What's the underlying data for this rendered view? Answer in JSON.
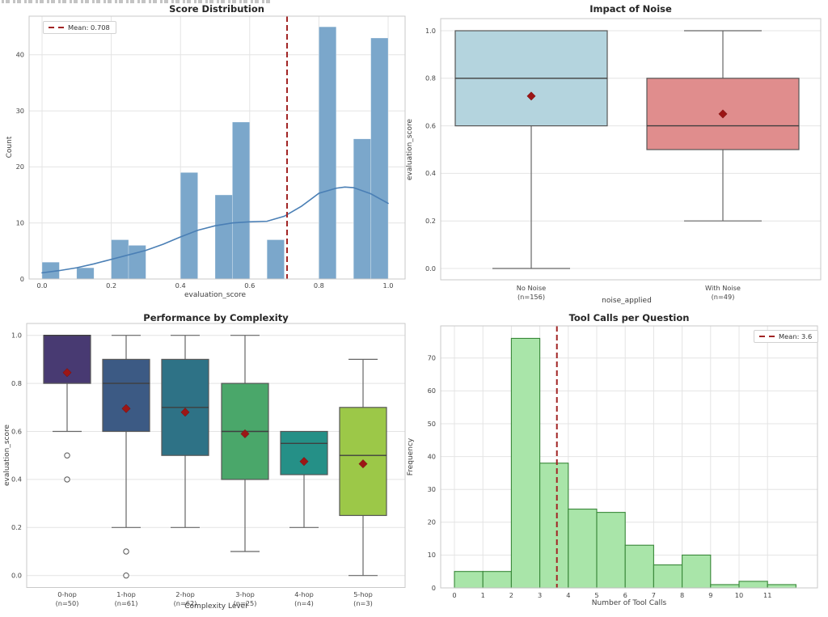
{
  "figure": {
    "background": "#ffffff"
  },
  "palette": {
    "mean_line": "#a12424",
    "mean_marker": "#9c1616",
    "grid": "#e4e4e4",
    "spine": "#c9c9c9",
    "box_edge": "#565656",
    "median_line": "#3f3f3f",
    "whisker": "#666666",
    "tick_text": "#444444",
    "title_text": "#262626"
  },
  "chart_data": [
    {
      "type": "bar",
      "subtype": "histogram-with-kde",
      "title": "Score Distribution",
      "xlabel": "evaluation_score",
      "ylabel": "Count",
      "legend": {
        "label": "Mean: 0.708",
        "position": "upper-left"
      },
      "mean": 0.708,
      "bar_color": "#7ba7cb",
      "kde_color": "#4a7fb5",
      "xticks": [
        "0.0",
        "0.2",
        "0.4",
        "0.6",
        "0.8",
        "1.0"
      ],
      "yticks": [
        "0",
        "10",
        "20",
        "30",
        "40"
      ],
      "xlim": [
        -0.04,
        1.05
      ],
      "ylim": [
        0,
        47
      ],
      "bin_width": 0.05,
      "bars": [
        {
          "x": 0.0,
          "count": 3
        },
        {
          "x": 0.1,
          "count": 2
        },
        {
          "x": 0.2,
          "count": 7
        },
        {
          "x": 0.25,
          "count": 6
        },
        {
          "x": 0.4,
          "count": 19
        },
        {
          "x": 0.5,
          "count": 15
        },
        {
          "x": 0.55,
          "count": 28
        },
        {
          "x": 0.65,
          "count": 7
        },
        {
          "x": 0.8,
          "count": 45
        },
        {
          "x": 0.9,
          "count": 25
        },
        {
          "x": 0.95,
          "count": 43
        }
      ],
      "kde_points": [
        [
          0.0,
          1.1
        ],
        [
          0.05,
          1.5
        ],
        [
          0.1,
          2.0
        ],
        [
          0.15,
          2.7
        ],
        [
          0.2,
          3.5
        ],
        [
          0.25,
          4.3
        ],
        [
          0.3,
          5.1
        ],
        [
          0.35,
          6.2
        ],
        [
          0.4,
          7.5
        ],
        [
          0.45,
          8.7
        ],
        [
          0.5,
          9.5
        ],
        [
          0.55,
          10.0
        ],
        [
          0.6,
          10.2
        ],
        [
          0.65,
          10.3
        ],
        [
          0.7,
          11.2
        ],
        [
          0.75,
          13.0
        ],
        [
          0.8,
          15.3
        ],
        [
          0.85,
          16.2
        ],
        [
          0.875,
          16.4
        ],
        [
          0.9,
          16.3
        ],
        [
          0.95,
          15.2
        ],
        [
          1.0,
          13.5
        ]
      ]
    },
    {
      "type": "boxplot",
      "title": "Impact of Noise",
      "xlabel": "noise_applied",
      "ylabel": "evaluation_score",
      "yticks": [
        "0.0",
        "0.2",
        "0.4",
        "0.6",
        "0.8",
        "1.0"
      ],
      "ylim": [
        -0.05,
        1.05
      ],
      "boxes": [
        {
          "label": "No Noise",
          "n_label": "(n=156)",
          "color": "#b4d4de",
          "q1": 0.6,
          "median": 0.8,
          "q3": 1.0,
          "whisker_low": 0.0,
          "whisker_high": 1.0,
          "mean": 0.725,
          "outliers": []
        },
        {
          "label": "With Noise",
          "n_label": "(n=49)",
          "color": "#e08d8d",
          "q1": 0.5,
          "median": 0.6,
          "q3": 0.8,
          "whisker_low": 0.2,
          "whisker_high": 1.0,
          "mean": 0.65,
          "outliers": []
        }
      ]
    },
    {
      "type": "boxplot",
      "title": "Performance by Complexity",
      "xlabel": "Complexity Level",
      "ylabel": "evaluation_score",
      "yticks": [
        "0.0",
        "0.2",
        "0.4",
        "0.6",
        "0.8",
        "1.0"
      ],
      "ylim": [
        -0.05,
        1.05
      ],
      "boxes": [
        {
          "label": "0-hop",
          "n_label": "(n=50)",
          "color": "#483a72",
          "q1": 0.8,
          "median": 1.0,
          "q3": 1.0,
          "whisker_low": 0.6,
          "whisker_high": 1.0,
          "mean": 0.845,
          "outliers": [
            0.5,
            0.4
          ]
        },
        {
          "label": "1-hop",
          "n_label": "(n=61)",
          "color": "#3c5a84",
          "q1": 0.6,
          "median": 0.8,
          "q3": 0.9,
          "whisker_low": 0.2,
          "whisker_high": 1.0,
          "mean": 0.695,
          "outliers": [
            0.1,
            0.0
          ]
        },
        {
          "label": "2-hop",
          "n_label": "(n=62)",
          "color": "#2e7286",
          "q1": 0.5,
          "median": 0.7,
          "q3": 0.9,
          "whisker_low": 0.2,
          "whisker_high": 1.0,
          "mean": 0.68,
          "outliers": []
        },
        {
          "label": "3-hop",
          "n_label": "(n=25)",
          "color": "#4aa76a",
          "q1": 0.4,
          "median": 0.6,
          "q3": 0.8,
          "whisker_low": 0.1,
          "whisker_high": 1.0,
          "mean": 0.59,
          "outliers": []
        },
        {
          "label": "4-hop",
          "n_label": "(n=4)",
          "color": "#259087",
          "q1": 0.42,
          "median": 0.55,
          "q3": 0.6,
          "whisker_low": 0.2,
          "whisker_high": 0.6,
          "mean": 0.475,
          "outliers": []
        },
        {
          "label": "5-hop",
          "n_label": "(n=3)",
          "color": "#9cc848",
          "q1": 0.25,
          "median": 0.5,
          "q3": 0.7,
          "whisker_low": 0.0,
          "whisker_high": 0.9,
          "mean": 0.465,
          "outliers": []
        }
      ]
    },
    {
      "type": "bar",
      "subtype": "histogram",
      "title": "Tool Calls per Question",
      "xlabel": "Number of Tool Calls",
      "ylabel": "Frequency",
      "legend": {
        "label": "Mean: 3.6",
        "position": "upper-right"
      },
      "mean": 3.6,
      "bar_color": "#a9e5a9",
      "bar_edge": "#388738",
      "xticks": [
        "0",
        "1",
        "2",
        "3",
        "4",
        "5",
        "6",
        "7",
        "8",
        "9",
        "10",
        "11"
      ],
      "yticks": [
        "0",
        "10",
        "20",
        "30",
        "40",
        "50",
        "60",
        "70"
      ],
      "xlim": [
        -0.5,
        12.7
      ],
      "ylim": [
        0,
        80
      ],
      "bin_width": 1,
      "bars": [
        {
          "x": 0,
          "count": 5
        },
        {
          "x": 1,
          "count": 5
        },
        {
          "x": 2,
          "count": 76
        },
        {
          "x": 3,
          "count": 38
        },
        {
          "x": 4,
          "count": 24
        },
        {
          "x": 5,
          "count": 23
        },
        {
          "x": 6,
          "count": 13
        },
        {
          "x": 7,
          "count": 7
        },
        {
          "x": 8,
          "count": 10
        },
        {
          "x": 9,
          "count": 1
        },
        {
          "x": 10,
          "count": 2
        },
        {
          "x": 11,
          "count": 1
        }
      ]
    }
  ]
}
